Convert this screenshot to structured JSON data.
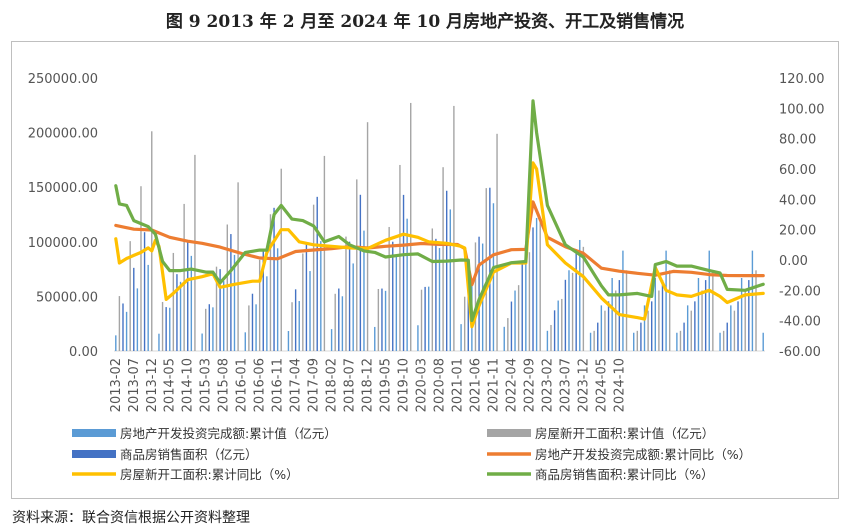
{
  "title": "图 9   2013 年 2 月至 2024 年 10 月房地产投资、开工及销售情况",
  "source": "资料来源：联合资信根据公开资料整理",
  "chart_data": {
    "type": "bar+line",
    "left_axis": {
      "ticks": [
        "0.00",
        "50000.00",
        "100000.00",
        "150000.00",
        "200000.00",
        "250000.00"
      ],
      "range": [
        0,
        250000
      ]
    },
    "right_axis": {
      "ticks": [
        "-60.00",
        "-40.00",
        "-20.00",
        "0.00",
        "20.00",
        "40.00",
        "60.00",
        "80.00",
        "100.00",
        "120.00"
      ],
      "range": [
        -60,
        120
      ]
    },
    "x_ticks": [
      "2013-02",
      "2013-07",
      "2013-12",
      "2014-05",
      "2014-10",
      "2015-03",
      "2015-08",
      "2016-01",
      "2016-06",
      "2016-11",
      "2017-04",
      "2017-09",
      "2018-02",
      "2018-07",
      "2018-12",
      "2019-05",
      "2019-10",
      "2020-03",
      "2020-08",
      "2021-01",
      "2021-06",
      "2021-11",
      "2022-04",
      "2022-09",
      "2023-02",
      "2023-07",
      "2023-12",
      "2024-05",
      "2024-10"
    ],
    "legend_position": "bottom",
    "bar_series": [
      {
        "name": "房地产开发投资完成额:累计值（亿元）",
        "color": "#5b9bd5",
        "year_end_values": [
          86013,
          95036,
          95979,
          102581,
          109799,
          120264,
          132194,
          141443,
          147602,
          132895,
          110913,
          100280
        ]
      },
      {
        "name": "房屋新开工面积:累计值（亿元）",
        "color": "#a5a5a5",
        "year_end_values": [
          201208,
          179592,
          154454,
          166928,
          178654,
          209537,
          227154,
          224433,
          198895,
          120587,
          95376,
          73893
        ]
      },
      {
        "name": "商品房销售面积（亿元）",
        "color": "#4472c4",
        "year_end_values": [
          130551,
          120649,
          128495,
          157349,
          169408,
          171654,
          171558,
          176086,
          179433,
          135837,
          111735,
          77930
        ]
      }
    ],
    "line_series": [
      {
        "name": "房地产开发投资完成额:累计同比（%）",
        "color": "#ed7d31",
        "points": [
          [
            0,
            22.8
          ],
          [
            5,
            20.3
          ],
          [
            10,
            19.8
          ],
          [
            15,
            15
          ],
          [
            20,
            12.4
          ],
          [
            24,
            11
          ],
          [
            29,
            8.5
          ],
          [
            35,
            4.3
          ],
          [
            40,
            1.3
          ],
          [
            45,
            0.8
          ],
          [
            50,
            5.6
          ],
          [
            55,
            6.6
          ],
          [
            60,
            7.5
          ],
          [
            65,
            8.8
          ],
          [
            70,
            7.9
          ],
          [
            75,
            9
          ],
          [
            80,
            9.8
          ],
          [
            85,
            10.9
          ],
          [
            90,
            10.3
          ],
          [
            95,
            10.2
          ],
          [
            97,
            7.6
          ],
          [
            99,
            -16.3
          ],
          [
            101,
            -3.3
          ],
          [
            105,
            3.4
          ],
          [
            110,
            6.8
          ],
          [
            114,
            7
          ],
          [
            116,
            38.3
          ],
          [
            120,
            15
          ],
          [
            125,
            8.8
          ],
          [
            130,
            4.4
          ],
          [
            135,
            -5.4
          ],
          [
            140,
            -7.4
          ],
          [
            145,
            -8.8
          ],
          [
            150,
            -10
          ],
          [
            155,
            -7.5
          ],
          [
            160,
            -8.1
          ],
          [
            165,
            -9.6
          ],
          [
            170,
            -10.2
          ],
          [
            175,
            -10.3
          ],
          [
            180,
            -10.3
          ]
        ]
      },
      {
        "name": "房屋新开工面积:累计同比（%）",
        "color": "#ffc000",
        "points": [
          [
            0,
            14
          ],
          [
            1,
            -2
          ],
          [
            3,
            1
          ],
          [
            5,
            3
          ],
          [
            7,
            5
          ],
          [
            9,
            8
          ],
          [
            10,
            6
          ],
          [
            11,
            13
          ],
          [
            12,
            9
          ],
          [
            14,
            -26
          ],
          [
            16,
            -22
          ],
          [
            20,
            -13
          ],
          [
            24,
            -11
          ],
          [
            27,
            -9
          ],
          [
            29,
            -18
          ],
          [
            33,
            -16
          ],
          [
            38,
            -14
          ],
          [
            40,
            -14
          ],
          [
            42,
            5
          ],
          [
            46,
            20
          ],
          [
            48,
            20
          ],
          [
            51,
            12
          ],
          [
            55,
            10
          ],
          [
            60,
            9
          ],
          [
            65,
            8
          ],
          [
            70,
            7.5
          ],
          [
            75,
            13
          ],
          [
            80,
            17
          ],
          [
            84,
            15
          ],
          [
            87,
            12
          ],
          [
            92,
            11
          ],
          [
            96,
            9
          ],
          [
            97,
            8
          ],
          [
            99,
            -44
          ],
          [
            101,
            -30
          ],
          [
            105,
            -8
          ],
          [
            110,
            -2
          ],
          [
            114,
            -2
          ],
          [
            116,
            64
          ],
          [
            117,
            60
          ],
          [
            120,
            10
          ],
          [
            125,
            -2
          ],
          [
            130,
            -11
          ],
          [
            135,
            -25
          ],
          [
            140,
            -36
          ],
          [
            145,
            -38
          ],
          [
            147,
            -39
          ],
          [
            150,
            -5
          ],
          [
            153,
            -20
          ],
          [
            156,
            -23
          ],
          [
            160,
            -24
          ],
          [
            165,
            -20
          ],
          [
            168,
            -24
          ],
          [
            170,
            -28
          ],
          [
            175,
            -23
          ],
          [
            180,
            -22
          ]
        ]
      },
      {
        "name": "商品房销售面积:累计同比（%）",
        "color": "#70ad47",
        "points": [
          [
            0,
            49
          ],
          [
            1,
            37
          ],
          [
            3,
            36
          ],
          [
            5,
            26
          ],
          [
            7,
            24
          ],
          [
            9,
            22
          ],
          [
            11,
            17
          ],
          [
            13,
            -1
          ],
          [
            15,
            -7
          ],
          [
            18,
            -7
          ],
          [
            21,
            -6
          ],
          [
            25,
            -8
          ],
          [
            27,
            -8
          ],
          [
            29,
            -15
          ],
          [
            32,
            -7
          ],
          [
            36,
            5
          ],
          [
            40,
            6.5
          ],
          [
            42,
            6.5
          ],
          [
            44,
            30
          ],
          [
            46,
            36
          ],
          [
            49,
            27
          ],
          [
            52,
            26
          ],
          [
            55,
            22.5
          ],
          [
            58,
            12
          ],
          [
            62,
            15.5
          ],
          [
            65,
            10
          ],
          [
            69,
            6
          ],
          [
            72,
            5
          ],
          [
            75,
            2
          ],
          [
            80,
            3.5
          ],
          [
            84,
            4
          ],
          [
            88,
            -1
          ],
          [
            92,
            -0.7
          ],
          [
            96,
            0
          ],
          [
            98,
            -0.1
          ],
          [
            99,
            -39.9
          ],
          [
            101,
            -26
          ],
          [
            105,
            -5
          ],
          [
            110,
            -1.8
          ],
          [
            114,
            -1
          ],
          [
            116,
            104.9
          ],
          [
            117,
            84
          ],
          [
            120,
            36
          ],
          [
            125,
            10
          ],
          [
            130,
            1.9
          ],
          [
            135,
            -17
          ],
          [
            137,
            -23
          ],
          [
            140,
            -23
          ],
          [
            145,
            -22
          ],
          [
            149,
            -24
          ],
          [
            150,
            -3
          ],
          [
            153,
            -1
          ],
          [
            156,
            -4
          ],
          [
            160,
            -4
          ],
          [
            165,
            -7
          ],
          [
            168,
            -8.5
          ],
          [
            170,
            -19.4
          ],
          [
            175,
            -20
          ],
          [
            180,
            -16
          ]
        ]
      }
    ]
  }
}
